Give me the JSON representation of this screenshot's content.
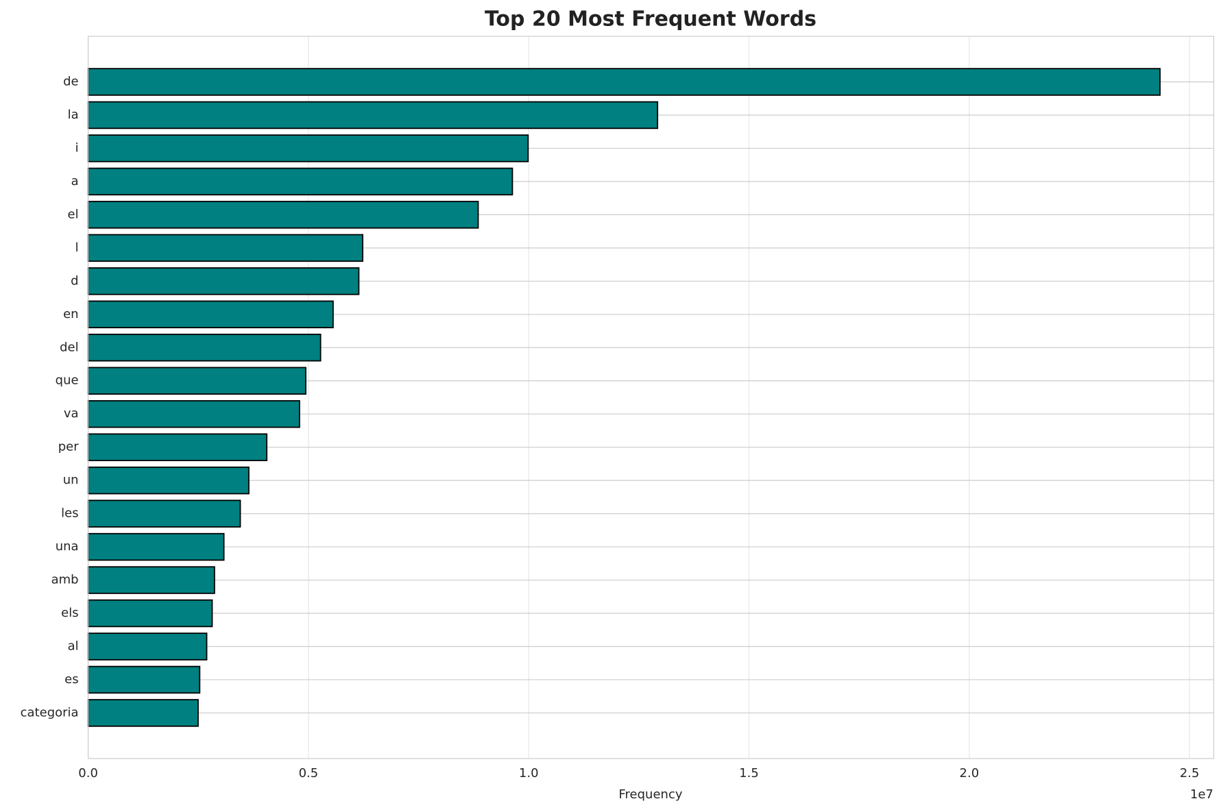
{
  "chart_data": {
    "type": "barh",
    "title": "Top 20 Most Frequent Words",
    "xlabel": "Frequency",
    "offset_label": "1e7",
    "categories": [
      "de",
      "la",
      "i",
      "a",
      "el",
      "l",
      "d",
      "en",
      "del",
      "que",
      "va",
      "per",
      "un",
      "les",
      "una",
      "amb",
      "els",
      "al",
      "es",
      "categoria"
    ],
    "values": [
      24330000,
      12925000,
      9986000,
      9630000,
      8853000,
      6232000,
      6144000,
      5560000,
      5276000,
      4940000,
      4798000,
      4055000,
      3647000,
      3453000,
      3081000,
      2868000,
      2815000,
      2691000,
      2532000,
      2496000
    ],
    "color": "#008080",
    "edgecolor": "#000000",
    "xlim": [
      0,
      25550000
    ],
    "xticks": [
      {
        "value": 0,
        "label": "0.0"
      },
      {
        "value": 5000000,
        "label": "0.5"
      },
      {
        "value": 10000000,
        "label": "1.0"
      },
      {
        "value": 15000000,
        "label": "1.5"
      },
      {
        "value": 20000000,
        "label": "2.0"
      },
      {
        "value": 25000000,
        "label": "2.5"
      }
    ],
    "grid": true
  }
}
